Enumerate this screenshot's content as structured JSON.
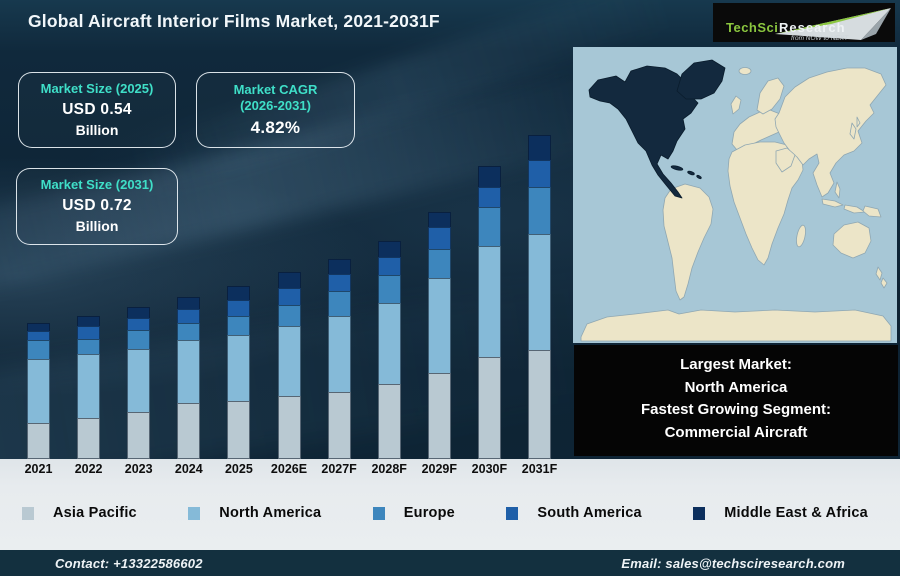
{
  "header": {
    "title": "Global Aircraft Interior Films Market, 2021-2031F",
    "logo": {
      "brand_primary": "TechSci",
      "brand_secondary": "Research",
      "tagline": "from NOW to NEXT"
    }
  },
  "stat_boxes": {
    "market_size_2025": {
      "label": "Market Size (2025)",
      "value": "USD 0.54",
      "unit": "Billion"
    },
    "market_cagr": {
      "label": "Market CAGR",
      "label_line2": "(2026-2031)",
      "value": "4.82%"
    },
    "market_size_2031": {
      "label": "Market Size (2031)",
      "value": "USD 0.72",
      "unit": "Billion"
    }
  },
  "highlights": {
    "line1": "Largest Market:",
    "line2": "North America",
    "line3": "Fastest Growing Segment:",
    "line4": "Commercial Aircraft"
  },
  "map": {
    "highlighted_region": "North America"
  },
  "footer": {
    "contact": "Contact: +13322586602",
    "email": "Email: sales@techsciresearch.com"
  },
  "colors": {
    "accent_teal": "#3fdfc8",
    "background_navy": "#0d2233",
    "footer_bar": "#13303f",
    "strip_light": "#e6ebee",
    "map_ocean": "#a7c7d6",
    "map_land": "#ece5c8",
    "map_highlight": "#13293e",
    "logo_green": "#8bc63f"
  },
  "chart_data": {
    "type": "bar",
    "subtype": "stacked-vertical",
    "title": "Global Aircraft Interior Films Market, 2021-2031F",
    "xlabel": "",
    "ylabel": "",
    "y_axis_shown": false,
    "value_unit": "relative height (px, no y-axis shown)",
    "categories": [
      "2021",
      "2022",
      "2023",
      "2024",
      "2025",
      "2026E",
      "2027F",
      "2028F",
      "2029F",
      "2030F",
      "2031F"
    ],
    "series": [
      {
        "name": "Asia Pacific",
        "color": "#b9c9d2",
        "values": [
          36,
          41,
          47,
          56,
          58,
          63,
          67,
          75,
          86,
          102,
          109
        ]
      },
      {
        "name": "North America",
        "color": "#85bad8",
        "values": [
          64,
          64,
          63,
          63,
          66,
          70,
          76,
          81,
          95,
          111,
          116
        ]
      },
      {
        "name": "Europe",
        "color": "#3d86bd",
        "values": [
          19,
          15,
          19,
          17,
          19,
          21,
          25,
          28,
          29,
          39,
          47
        ]
      },
      {
        "name": "South America",
        "color": "#1f5fa8",
        "values": [
          9,
          13,
          12,
          14,
          16,
          17,
          17,
          18,
          22,
          20,
          27
        ]
      },
      {
        "name": "Middle East & Africa",
        "color": "#0c2f5d",
        "values": [
          8,
          10,
          11,
          12,
          14,
          16,
          15,
          16,
          15,
          21,
          25
        ]
      }
    ],
    "legend_position": "bottom",
    "grid": false,
    "totals_note": "Market Size 2025: USD 0.54 Billion; Market Size 2031: USD 0.72 Billion; CAGR 2026-2031: 4.82%"
  }
}
